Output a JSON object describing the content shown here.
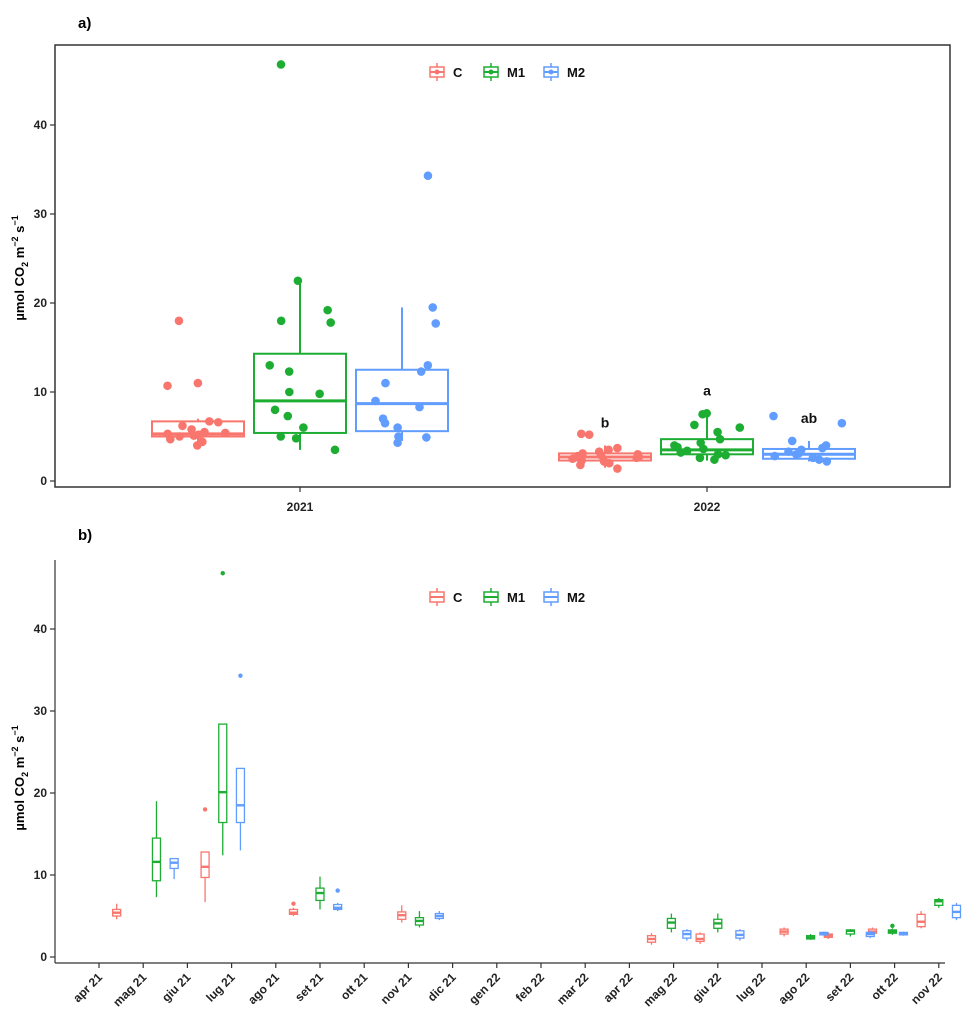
{
  "colors": {
    "C": "#F8766D",
    "M1": "#1CAD32",
    "M2": "#619CFF"
  },
  "chart_data": [
    {
      "panel": "a)",
      "type": "boxplot",
      "ylabel": "µmol CO₂ m⁻² s⁻¹",
      "ylim": [
        0,
        47
      ],
      "yticks": [
        0,
        10,
        20,
        30,
        40
      ],
      "categories": [
        "2021",
        "2022"
      ],
      "legend": {
        "placement": "top-center",
        "entries": [
          "C",
          "M1",
          "M2"
        ]
      },
      "grid": false,
      "series": [
        {
          "name": "C",
          "boxes": [
            {
              "x": "2021",
              "min": 4.0,
              "q1": 5.0,
              "median": 5.3,
              "q3": 6.7,
              "max": 7.0,
              "points": [
                4.0,
                4.4,
                4.7,
                5.0,
                5.1,
                5.2,
                5.3,
                5.4,
                5.5,
                5.8,
                6.2,
                6.6,
                6.7,
                10.7,
                11.0,
                18.0
              ]
            },
            {
              "x": "2022",
              "min": 1.5,
              "q1": 2.3,
              "median": 2.7,
              "q3": 3.1,
              "max": 4.0,
              "label": "b",
              "points": [
                1.4,
                1.8,
                2.0,
                2.2,
                2.3,
                2.5,
                2.6,
                2.7,
                2.8,
                2.9,
                3.0,
                3.1,
                3.3,
                3.5,
                3.7,
                5.2,
                5.3
              ]
            }
          ]
        },
        {
          "name": "M1",
          "boxes": [
            {
              "x": "2021",
              "min": 3.5,
              "q1": 5.4,
              "median": 9.0,
              "q3": 14.3,
              "max": 22.5,
              "points": [
                3.5,
                4.8,
                5.0,
                6.0,
                7.3,
                8.0,
                9.8,
                10.0,
                12.3,
                13.0,
                17.8,
                18.0,
                19.2,
                22.5,
                46.8
              ]
            },
            {
              "x": "2022",
              "min": 2.3,
              "q1": 3.0,
              "median": 3.5,
              "q3": 4.7,
              "max": 7.6,
              "label": "a",
              "points": [
                2.4,
                2.6,
                2.9,
                3.0,
                3.2,
                3.4,
                3.6,
                3.8,
                4.0,
                4.3,
                4.7,
                5.5,
                6.0,
                6.3,
                7.5,
                7.6
              ]
            }
          ]
        },
        {
          "name": "M2",
          "boxes": [
            {
              "x": "2021",
              "min": 4.5,
              "q1": 5.6,
              "median": 8.7,
              "q3": 12.5,
              "max": 19.5,
              "points": [
                4.3,
                4.9,
                5.0,
                6.0,
                6.5,
                7.0,
                8.3,
                9.0,
                11.0,
                12.3,
                13.0,
                17.7,
                19.5,
                34.3
              ]
            },
            {
              "x": "2022",
              "min": 2.2,
              "q1": 2.5,
              "median": 3.0,
              "q3": 3.6,
              "max": 4.5,
              "label": "ab",
              "points": [
                2.2,
                2.4,
                2.6,
                2.8,
                3.0,
                3.1,
                3.3,
                3.5,
                3.7,
                4.0,
                4.5,
                6.5,
                7.3
              ]
            }
          ]
        }
      ]
    },
    {
      "panel": "b)",
      "type": "boxplot",
      "ylabel": "µmol CO₂ m⁻² s⁻¹",
      "ylim": [
        0,
        47
      ],
      "yticks": [
        0,
        10,
        20,
        30,
        40
      ],
      "categories": [
        "apr 21",
        "mag 21",
        "giu 21",
        "lug 21",
        "ago 21",
        "set 21",
        "ott 21",
        "nov 21",
        "dic 21",
        "gen 22",
        "feb 22",
        "mar 22",
        "apr 22",
        "mag 22",
        "giu 22",
        "lug 22",
        "ago 22",
        "set 22",
        "ott 22",
        "nov 22"
      ],
      "legend": {
        "placement": "top-center",
        "entries": [
          "C",
          "M1",
          "M2"
        ]
      },
      "grid": false,
      "series": [
        {
          "name": "C",
          "boxes": [
            {
              "x": 0.4,
              "min": 4.6,
              "q1": 5.0,
              "median": 5.4,
              "q3": 5.8,
              "max": 6.5,
              "outliers": []
            },
            {
              "x": 2.4,
              "min": 6.7,
              "q1": 9.7,
              "median": 11.0,
              "q3": 12.8,
              "max": 12.8,
              "outliers": [
                18.0
              ]
            },
            {
              "x": 4.4,
              "min": 5.0,
              "q1": 5.2,
              "median": 5.4,
              "q3": 5.8,
              "max": 6.0,
              "outliers": [
                6.5
              ]
            },
            {
              "x": 6.85,
              "min": 4.2,
              "q1": 4.6,
              "median": 5.1,
              "q3": 5.5,
              "max": 6.3,
              "outliers": []
            },
            {
              "x": 12.5,
              "min": 1.5,
              "q1": 1.8,
              "median": 2.2,
              "q3": 2.6,
              "max": 2.9,
              "outliers": []
            },
            {
              "x": 13.6,
              "min": 1.6,
              "q1": 1.9,
              "median": 2.2,
              "q3": 2.8,
              "max": 3.0,
              "outliers": []
            },
            {
              "x": 15.5,
              "min": 2.5,
              "q1": 2.8,
              "median": 3.1,
              "q3": 3.4,
              "max": 3.6,
              "outliers": []
            },
            {
              "x": 16.5,
              "min": 2.2,
              "q1": 2.4,
              "median": 2.6,
              "q3": 2.8,
              "max": 3.0,
              "outliers": []
            },
            {
              "x": 17.5,
              "min": 2.7,
              "q1": 2.9,
              "median": 3.1,
              "q3": 3.4,
              "max": 3.6,
              "outliers": []
            },
            {
              "x": 18.6,
              "min": 3.5,
              "q1": 3.7,
              "median": 4.3,
              "q3": 5.2,
              "max": 5.6,
              "outliers": []
            }
          ]
        },
        {
          "name": "M1",
          "boxes": [
            {
              "x": 1.3,
              "min": 7.3,
              "q1": 9.3,
              "median": 11.6,
              "q3": 14.5,
              "max": 19.0,
              "outliers": []
            },
            {
              "x": 2.8,
              "min": 12.4,
              "q1": 16.4,
              "median": 20.1,
              "q3": 28.4,
              "max": 28.4,
              "outliers": [
                46.8
              ]
            },
            {
              "x": 5.0,
              "min": 5.8,
              "q1": 6.9,
              "median": 7.8,
              "q3": 8.4,
              "max": 9.8,
              "outliers": []
            },
            {
              "x": 7.25,
              "min": 3.6,
              "q1": 3.9,
              "median": 4.4,
              "q3": 4.8,
              "max": 5.6,
              "outliers": []
            },
            {
              "x": 12.95,
              "min": 3.0,
              "q1": 3.5,
              "median": 4.2,
              "q3": 4.7,
              "max": 5.3,
              "outliers": []
            },
            {
              "x": 14.0,
              "min": 3.0,
              "q1": 3.5,
              "median": 4.1,
              "q3": 4.6,
              "max": 5.3,
              "outliers": []
            },
            {
              "x": 16.1,
              "min": 2.1,
              "q1": 2.2,
              "median": 2.4,
              "q3": 2.6,
              "max": 2.8,
              "outliers": []
            },
            {
              "x": 17.0,
              "min": 2.5,
              "q1": 2.8,
              "median": 3.2,
              "q3": 3.3,
              "max": 3.4,
              "outliers": []
            },
            {
              "x": 17.95,
              "min": 2.7,
              "q1": 2.9,
              "median": 3.1,
              "q3": 3.3,
              "max": 3.5,
              "outliers": [
                3.8
              ]
            },
            {
              "x": 19.0,
              "min": 6.0,
              "q1": 6.3,
              "median": 6.8,
              "q3": 7.0,
              "max": 7.2,
              "outliers": []
            }
          ]
        },
        {
          "name": "M2",
          "boxes": [
            {
              "x": 1.7,
              "min": 9.5,
              "q1": 10.8,
              "median": 11.5,
              "q3": 12.0,
              "max": 12.0,
              "outliers": []
            },
            {
              "x": 3.2,
              "min": 13.0,
              "q1": 16.4,
              "median": 18.5,
              "q3": 23.0,
              "max": 23.0,
              "outliers": [
                34.3
              ]
            },
            {
              "x": 5.4,
              "min": 5.6,
              "q1": 5.8,
              "median": 6.0,
              "q3": 6.4,
              "max": 6.6,
              "outliers": [
                8.1
              ]
            },
            {
              "x": 7.7,
              "min": 4.5,
              "q1": 4.7,
              "median": 5.0,
              "q3": 5.3,
              "max": 5.6,
              "outliers": []
            },
            {
              "x": 13.3,
              "min": 2.0,
              "q1": 2.3,
              "median": 2.8,
              "q3": 3.2,
              "max": 3.4,
              "outliers": []
            },
            {
              "x": 14.5,
              "min": 2.0,
              "q1": 2.3,
              "median": 2.7,
              "q3": 3.2,
              "max": 3.4,
              "outliers": []
            },
            {
              "x": 16.4,
              "min": 2.6,
              "q1": 2.7,
              "median": 2.9,
              "q3": 3.0,
              "max": 3.1,
              "outliers": []
            },
            {
              "x": 17.45,
              "min": 2.3,
              "q1": 2.5,
              "median": 2.8,
              "q3": 3.0,
              "max": 3.2,
              "outliers": []
            },
            {
              "x": 18.2,
              "min": 2.6,
              "q1": 2.7,
              "median": 2.9,
              "q3": 3.0,
              "max": 3.1,
              "outliers": []
            },
            {
              "x": 19.4,
              "min": 4.5,
              "q1": 4.8,
              "median": 5.5,
              "q3": 6.3,
              "max": 6.6,
              "outliers": []
            }
          ]
        }
      ]
    }
  ]
}
